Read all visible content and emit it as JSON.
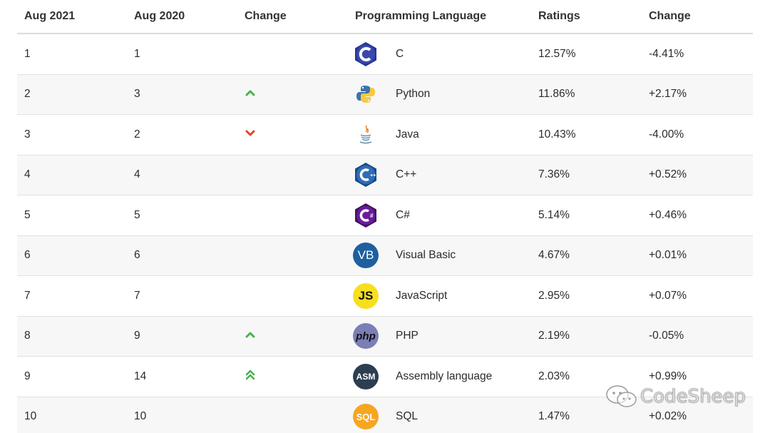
{
  "header": {
    "col1": "Aug 2021",
    "col2": "Aug 2020",
    "col3": "Change",
    "col4": "Programming Language",
    "col5": "Ratings",
    "col6": "Change"
  },
  "rows": [
    {
      "rank2021": "1",
      "rank2020": "1",
      "trend": "none",
      "language": "C",
      "icon": "c-language-icon",
      "rating": "12.57%",
      "change": "-4.41%"
    },
    {
      "rank2021": "2",
      "rank2020": "3",
      "trend": "up",
      "language": "Python",
      "icon": "python-icon",
      "rating": "11.86%",
      "change": "+2.17%"
    },
    {
      "rank2021": "3",
      "rank2020": "2",
      "trend": "down",
      "language": "Java",
      "icon": "java-icon",
      "rating": "10.43%",
      "change": "-4.00%"
    },
    {
      "rank2021": "4",
      "rank2020": "4",
      "trend": "none",
      "language": "C++",
      "icon": "cpp-icon",
      "rating": "7.36%",
      "change": "+0.52%"
    },
    {
      "rank2021": "5",
      "rank2020": "5",
      "trend": "none",
      "language": "C#",
      "icon": "csharp-icon",
      "rating": "5.14%",
      "change": "+0.46%"
    },
    {
      "rank2021": "6",
      "rank2020": "6",
      "trend": "none",
      "language": "Visual Basic",
      "icon": "visual-basic-icon",
      "icon_text": "VB",
      "rating": "4.67%",
      "change": "+0.01%"
    },
    {
      "rank2021": "7",
      "rank2020": "7",
      "trend": "none",
      "language": "JavaScript",
      "icon": "javascript-icon",
      "icon_text": "JS",
      "rating": "2.95%",
      "change": "+0.07%"
    },
    {
      "rank2021": "8",
      "rank2020": "9",
      "trend": "up",
      "language": "PHP",
      "icon": "php-icon",
      "icon_text": "php",
      "rating": "2.19%",
      "change": "-0.05%"
    },
    {
      "rank2021": "9",
      "rank2020": "14",
      "trend": "double-up",
      "language": "Assembly language",
      "icon": "assembly-icon",
      "icon_text": "ASM",
      "rating": "2.03%",
      "change": "+0.99%"
    },
    {
      "rank2021": "10",
      "rank2020": "10",
      "trend": "none",
      "language": "SQL",
      "icon": "sql-icon",
      "icon_text": "SQL",
      "rating": "1.47%",
      "change": "+0.02%"
    }
  ],
  "watermark": {
    "text": "CodeSheep",
    "icon": "wechat-icon"
  },
  "colors": {
    "up": "#4caf50",
    "down": "#e8441a",
    "c_blue": "#3949ab",
    "c_dark": "#283593",
    "csharp_purple": "#6a1b9a",
    "vb_blue": "#1e5fa0",
    "js_yellow": "#f7df1e",
    "php_purple": "#7b7fb5",
    "asm_dark": "#2c3e50",
    "sql_orange": "#f5a623"
  }
}
